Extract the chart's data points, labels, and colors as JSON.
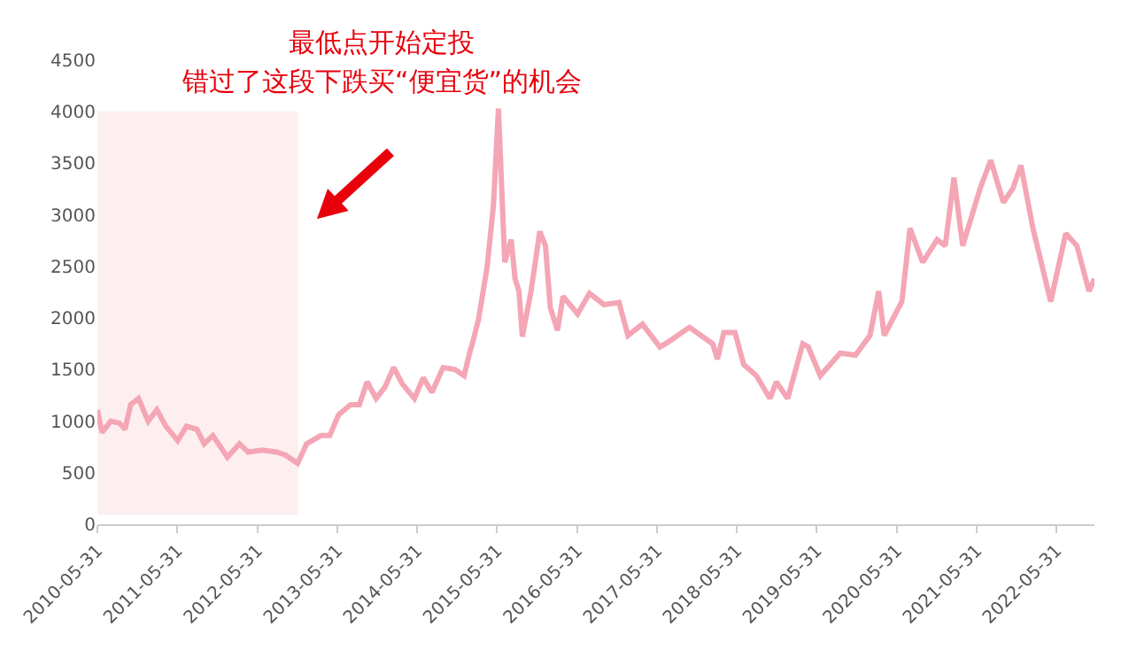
{
  "chart_data": {
    "type": "line",
    "annotations": [
      "最低点开始定投",
      "错过了这段下跌买“便宜货”的机会"
    ],
    "bands": [
      {
        "axis": "x",
        "from": "2010-05-31",
        "to": "2012-12-05",
        "color": "#fdeff0"
      }
    ],
    "series": [
      {
        "color": "#f4a6b5",
        "x": [
          "2010-05-31",
          "2010-06-21",
          "2010-07-31",
          "2010-09-09",
          "2010-10-04",
          "2010-10-30",
          "2010-12-05",
          "2011-01-18",
          "2011-02-27",
          "2011-04-09",
          "2011-06-02",
          "2011-07-12",
          "2011-08-29",
          "2011-10-01",
          "2011-11-10",
          "2012-01-15",
          "2012-03-10",
          "2012-04-19",
          "2012-06-23",
          "2012-08-28",
          "2012-10-07",
          "2012-12-01",
          "2013-01-11",
          "2013-03-18",
          "2013-04-27",
          "2013-06-06",
          "2013-07-31",
          "2013-09-09",
          "2013-10-15",
          "2013-11-25",
          "2014-01-04",
          "2014-02-13",
          "2014-03-25",
          "2014-05-19",
          "2014-06-28",
          "2014-08-07",
          "2014-09-27",
          "2014-11-21",
          "2015-01-01",
          "2015-01-26",
          "2015-02-10",
          "2015-03-08",
          "2015-04-16",
          "2015-05-15",
          "2015-06-07",
          "2015-07-06",
          "2015-08-04",
          "2015-08-22",
          "2015-09-09",
          "2015-09-24",
          "2015-11-03",
          "2015-12-13",
          "2016-01-08",
          "2016-01-30",
          "2016-03-03",
          "2016-03-28",
          "2016-06-03",
          "2016-07-27",
          "2016-10-01",
          "2016-12-09",
          "2017-01-19",
          "2017-03-26",
          "2017-06-14",
          "2017-07-24",
          "2017-10-27",
          "2018-02-10",
          "2018-03-04",
          "2018-04-02",
          "2018-05-23",
          "2018-07-02",
          "2018-08-29",
          "2018-10-30",
          "2018-11-28",
          "2019-01-19",
          "2019-03-29",
          "2019-04-23",
          "2019-06-17",
          "2019-09-16",
          "2019-11-25",
          "2020-01-30",
          "2020-03-10",
          "2020-04-04",
          "2020-06-24",
          "2020-07-31",
          "2020-09-27",
          "2020-12-02",
          "2021-01-08",
          "2021-02-17",
          "2021-03-29",
          "2021-05-08",
          "2021-06-17",
          "2021-08-04",
          "2021-10-01",
          "2021-11-14",
          "2021-12-20",
          "2022-02-13",
          "2022-05-05",
          "2022-07-13",
          "2022-09-02",
          "2022-10-27",
          "2022-11-21"
        ],
        "values": [
          1110,
          890,
          1000,
          980,
          920,
          1160,
          1220,
          1000,
          1110,
          950,
          810,
          950,
          920,
          780,
          860,
          650,
          780,
          700,
          720,
          700,
          670,
          590,
          780,
          860,
          860,
          1060,
          1160,
          1160,
          1380,
          1220,
          1330,
          1520,
          1360,
          1220,
          1420,
          1280,
          1520,
          1500,
          1440,
          1660,
          1770,
          1990,
          2490,
          3090,
          4030,
          2540,
          2760,
          2380,
          2260,
          1820,
          2260,
          2840,
          2700,
          2100,
          1880,
          2210,
          2040,
          2240,
          2130,
          2150,
          1830,
          1940,
          1720,
          1770,
          1910,
          1750,
          1600,
          1860,
          1860,
          1550,
          1440,
          1220,
          1380,
          1220,
          1750,
          1720,
          1440,
          1660,
          1640,
          1830,
          2260,
          1830,
          2160,
          2870,
          2540,
          2760,
          2700,
          3360,
          2700,
          2980,
          3260,
          3530,
          3120,
          3260,
          3480,
          2870,
          2160,
          2820,
          2700,
          2260,
          2380
        ]
      }
    ],
    "xlim": [
      "2010-05-31",
      "2022-11-21"
    ],
    "xticks": [
      "2010-05-31",
      "2011-05-31",
      "2012-05-31",
      "2013-05-31",
      "2014-05-31",
      "2015-05-31",
      "2016-05-31",
      "2017-05-31",
      "2018-05-31",
      "2019-05-31",
      "2020-05-31",
      "2021-05-31",
      "2022-05-31"
    ],
    "ylim": [
      0,
      4500
    ],
    "yticks": [
      0,
      500,
      1000,
      1500,
      2000,
      2500,
      3000,
      3500,
      4000,
      4500
    ],
    "grid": false,
    "marker": "none",
    "line_style": "solid"
  }
}
